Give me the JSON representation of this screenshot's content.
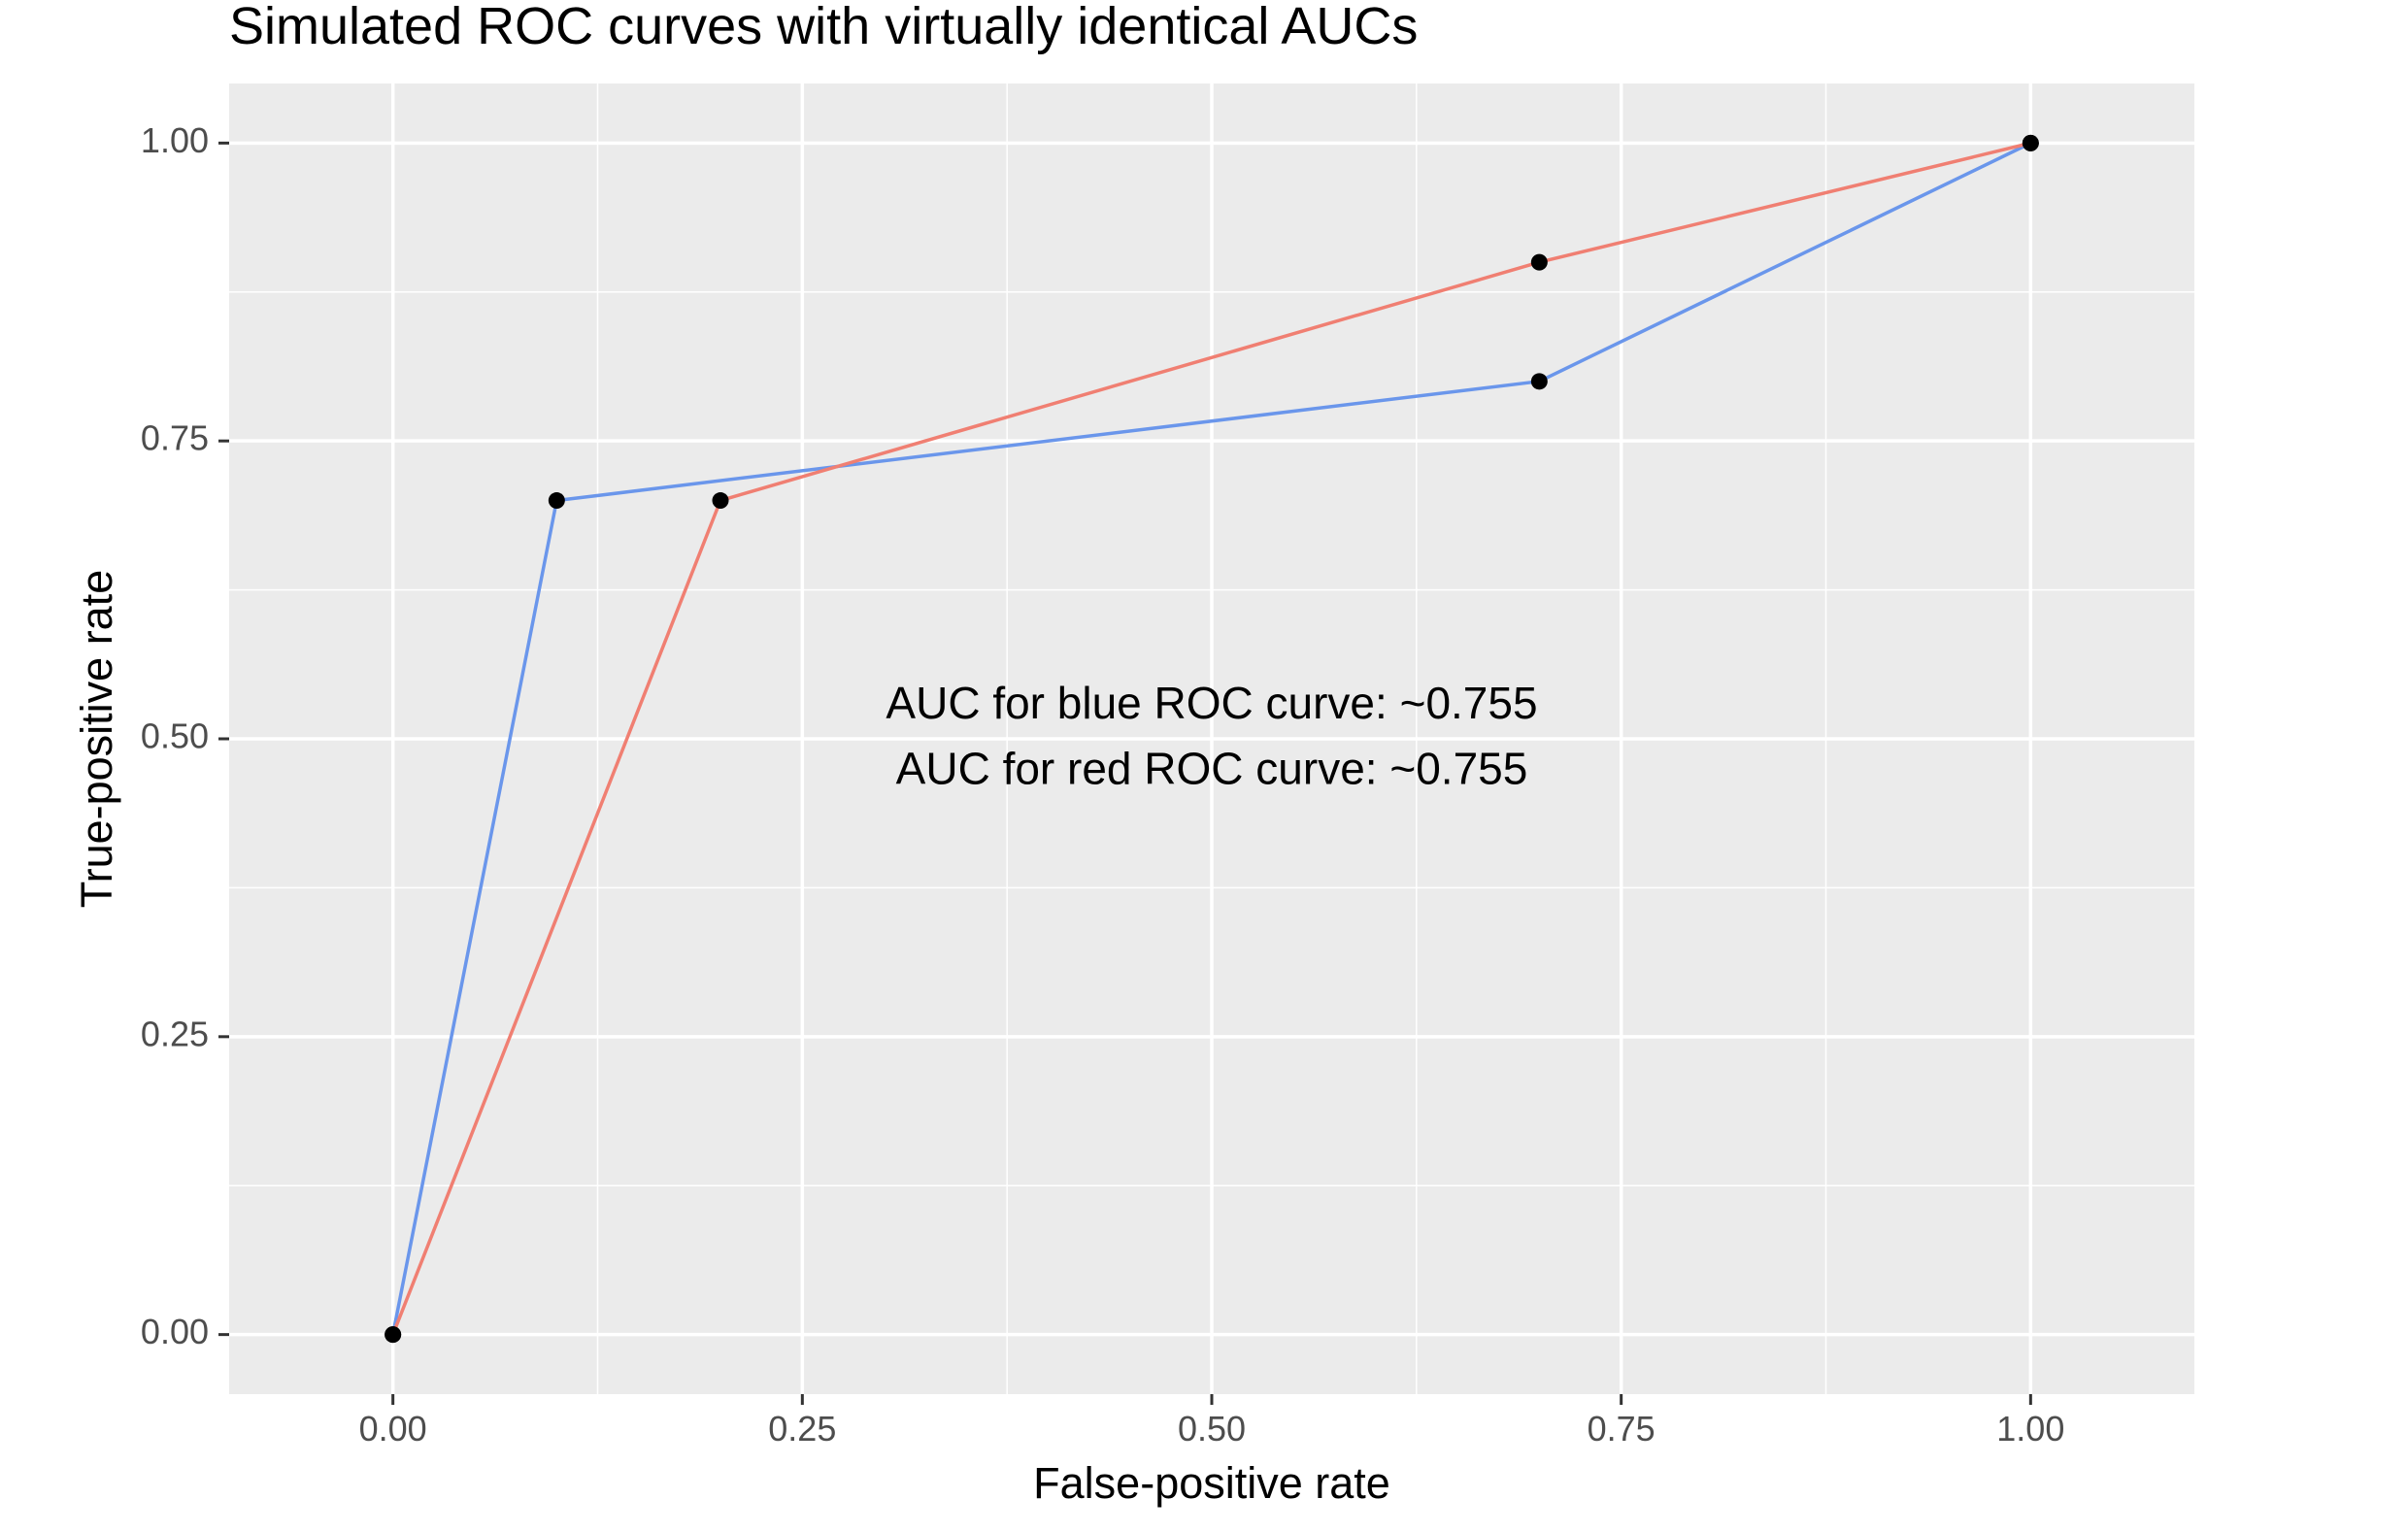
{
  "chart_data": {
    "type": "line",
    "title": "Simulated ROC curves with virtually identical AUCs",
    "xlabel": "False-positive rate",
    "ylabel": "True-positive rate",
    "xlim": [
      -0.1,
      1.1
    ],
    "ylim": [
      -0.05,
      1.05
    ],
    "x_ticks": [
      {
        "value": 0,
        "label": "0.00"
      },
      {
        "value": 0.25,
        "label": "0.25"
      },
      {
        "value": 0.5,
        "label": "0.50"
      },
      {
        "value": 0.75,
        "label": "0.75"
      },
      {
        "value": 1,
        "label": "1.00"
      }
    ],
    "y_ticks": [
      {
        "value": 0,
        "label": "0.00"
      },
      {
        "value": 0.25,
        "label": "0.25"
      },
      {
        "value": 0.5,
        "label": "0.50"
      },
      {
        "value": 0.75,
        "label": "0.75"
      },
      {
        "value": 1,
        "label": "1.00"
      }
    ],
    "grid": true,
    "legend": "none",
    "panel_background": "#EBEBEB",
    "grid_color": "#FFFFFF",
    "point_color": "#000000",
    "series": [
      {
        "color": "#6A96EB",
        "points": [
          {
            "x": 0,
            "y": 0
          },
          {
            "x": 0.1,
            "y": 0.7
          },
          {
            "x": 0.7,
            "y": 0.8
          },
          {
            "x": 1,
            "y": 1
          }
        ]
      },
      {
        "color": "#F07F72",
        "points": [
          {
            "x": 0,
            "y": 0
          },
          {
            "x": 0.2,
            "y": 0.7
          },
          {
            "x": 0.7,
            "y": 0.9
          },
          {
            "x": 1,
            "y": 1
          }
        ]
      }
    ],
    "annotations": [
      {
        "text": "AUC for blue ROC curve: ~0.755",
        "x": 0.5,
        "y": 0.527
      },
      {
        "text": "AUC for red ROC curve: ~0.755",
        "x": 0.5,
        "y": 0.472
      }
    ]
  }
}
